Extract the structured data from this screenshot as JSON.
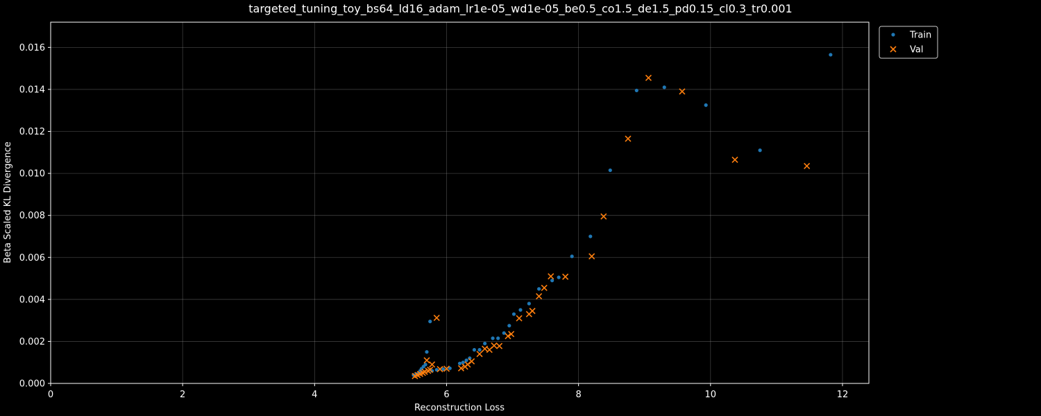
{
  "chart_data": {
    "type": "scatter",
    "title": "targeted_tuning_toy_bs64_ld16_adam_lr1e-05_wd1e-05_be0.5_co1.5_de1.5_pd0.15_cl0.3_tr0.001",
    "xlabel": "Reconstruction Loss",
    "ylabel": "Beta Scaled KL Divergence",
    "xlim": [
      0,
      12.4
    ],
    "ylim": [
      0,
      0.0172
    ],
    "xticks": [
      0,
      2,
      4,
      6,
      8,
      10,
      12
    ],
    "xtick_labels": [
      "0",
      "2",
      "4",
      "6",
      "8",
      "10",
      "12"
    ],
    "yticks": [
      0,
      0.002,
      0.004,
      0.006,
      0.008,
      0.01,
      0.012,
      0.014,
      0.016
    ],
    "ytick_labels": [
      "0.000",
      "0.002",
      "0.004",
      "0.006",
      "0.008",
      "0.010",
      "0.012",
      "0.014",
      "0.016"
    ],
    "grid": true,
    "legend_position": "outside-top-right",
    "series": [
      {
        "name": "Train",
        "marker": "dot",
        "color": "#1f77b4",
        "points": [
          [
            5.5,
            0.0004
          ],
          [
            5.55,
            0.00045
          ],
          [
            5.58,
            0.0005
          ],
          [
            5.6,
            0.0006
          ],
          [
            5.62,
            0.0007
          ],
          [
            5.65,
            0.0008
          ],
          [
            5.68,
            0.0009
          ],
          [
            5.7,
            0.0015
          ],
          [
            5.75,
            0.00295
          ],
          [
            5.78,
            0.0006
          ],
          [
            5.85,
            0.00065
          ],
          [
            5.95,
            0.00068
          ],
          [
            6.05,
            0.00072
          ],
          [
            6.2,
            0.00095
          ],
          [
            6.25,
            0.001
          ],
          [
            6.3,
            0.0011
          ],
          [
            6.35,
            0.0012
          ],
          [
            6.42,
            0.0016
          ],
          [
            6.5,
            0.0016
          ],
          [
            6.58,
            0.0019
          ],
          [
            6.7,
            0.00215
          ],
          [
            6.78,
            0.00215
          ],
          [
            6.87,
            0.0024
          ],
          [
            6.95,
            0.00275
          ],
          [
            7.02,
            0.0033
          ],
          [
            7.12,
            0.0035
          ],
          [
            7.25,
            0.0038
          ],
          [
            7.4,
            0.0045
          ],
          [
            7.6,
            0.0049
          ],
          [
            7.7,
            0.00505
          ],
          [
            7.9,
            0.00605
          ],
          [
            8.18,
            0.007
          ],
          [
            8.48,
            0.01015
          ],
          [
            8.88,
            0.01395
          ],
          [
            9.3,
            0.0141
          ],
          [
            9.93,
            0.01325
          ],
          [
            10.75,
            0.0111
          ],
          [
            11.82,
            0.01565
          ]
        ]
      },
      {
        "name": "Val",
        "marker": "x",
        "color": "#ff7f0e",
        "points": [
          [
            5.52,
            0.00035
          ],
          [
            5.56,
            0.0004
          ],
          [
            5.6,
            0.00045
          ],
          [
            5.64,
            0.0005
          ],
          [
            5.67,
            0.00055
          ],
          [
            5.7,
            0.0011
          ],
          [
            5.72,
            0.0006
          ],
          [
            5.75,
            0.00065
          ],
          [
            5.78,
            0.0009
          ],
          [
            5.85,
            0.00312
          ],
          [
            5.9,
            0.00068
          ],
          [
            6.0,
            0.0007
          ],
          [
            6.22,
            0.00072
          ],
          [
            6.28,
            0.0008
          ],
          [
            6.32,
            0.0009
          ],
          [
            6.38,
            0.00105
          ],
          [
            6.5,
            0.0014
          ],
          [
            6.58,
            0.00165
          ],
          [
            6.65,
            0.0016
          ],
          [
            6.72,
            0.0018
          ],
          [
            6.8,
            0.00178
          ],
          [
            6.93,
            0.00225
          ],
          [
            6.98,
            0.00235
          ],
          [
            7.1,
            0.0031
          ],
          [
            7.25,
            0.0033
          ],
          [
            7.3,
            0.00345
          ],
          [
            7.4,
            0.00415
          ],
          [
            7.48,
            0.00455
          ],
          [
            7.58,
            0.0051
          ],
          [
            7.8,
            0.00508
          ],
          [
            8.2,
            0.00605
          ],
          [
            8.38,
            0.00795
          ],
          [
            8.75,
            0.01165
          ],
          [
            9.06,
            0.01455
          ],
          [
            9.57,
            0.0139
          ],
          [
            10.37,
            0.01065
          ],
          [
            11.46,
            0.01035
          ]
        ]
      }
    ]
  }
}
